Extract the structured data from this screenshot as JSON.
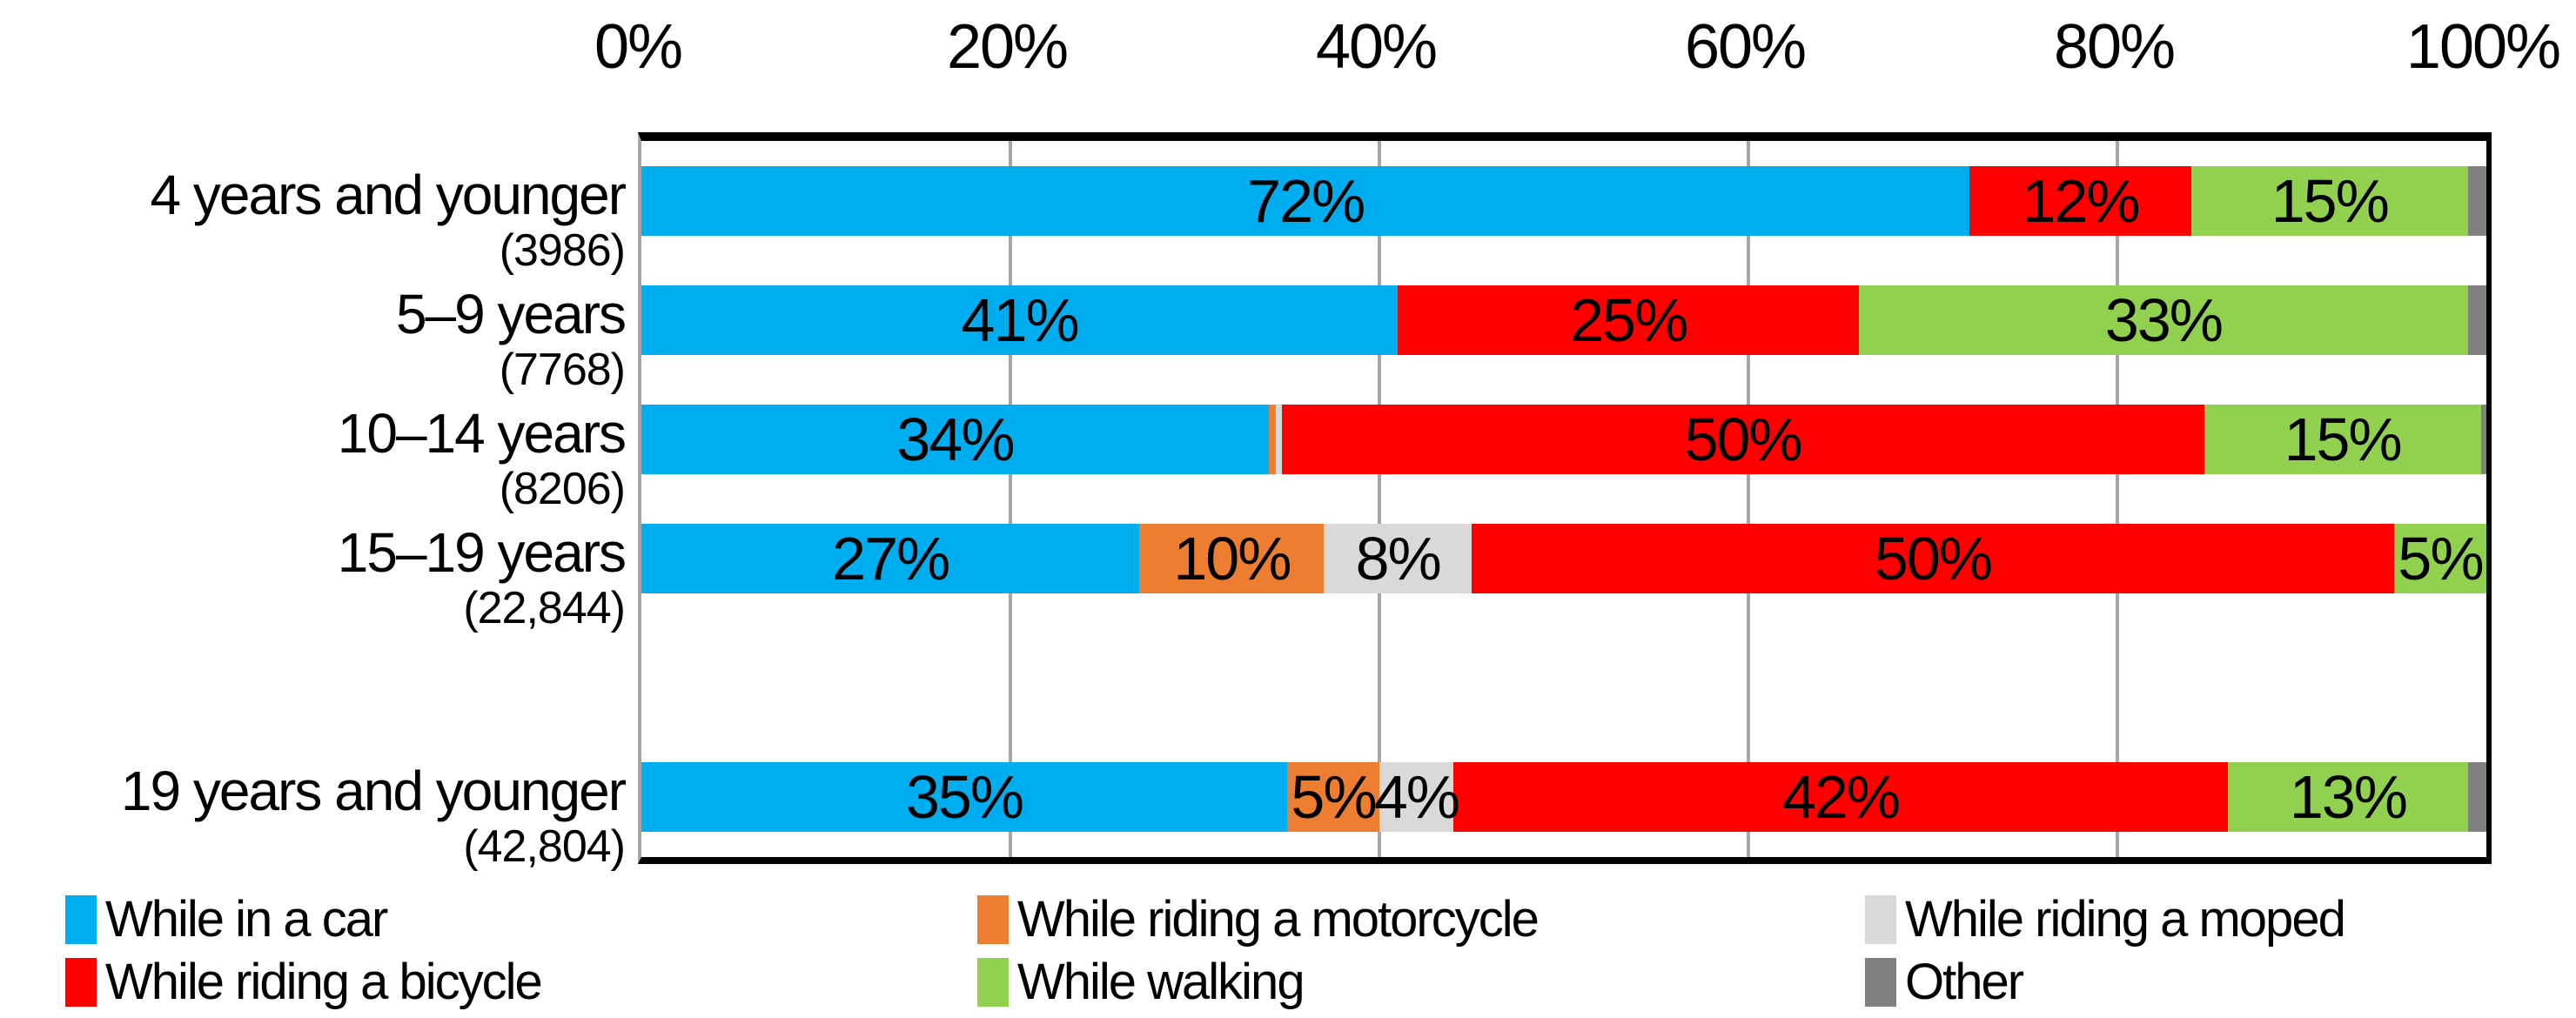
{
  "chart_data": {
    "type": "bar",
    "variant": "horizontal-stacked-100pct",
    "title": "",
    "x_axis": {
      "position": "top",
      "range": [
        0,
        100
      ],
      "tick_labels": [
        "0%",
        "20%",
        "40%",
        "60%",
        "80%",
        "100%"
      ],
      "gridlines": true
    },
    "colors": {
      "car": "#00aeef",
      "motorcycle": "#ed7d31",
      "moped": "#d9d9d9",
      "bicycle": "#ff0000",
      "walking": "#92d050",
      "other": "#808080",
      "gridline": "#a6a6a6",
      "axis": "#000000"
    },
    "rows": [
      {
        "category": "4 years and younger",
        "count": "(3986)",
        "segments": [
          {
            "key": "car",
            "value": 72,
            "label": "72%"
          },
          {
            "key": "bicycle",
            "value": 12,
            "label": "12%"
          },
          {
            "key": "walking",
            "value": 15,
            "label": "15%"
          },
          {
            "key": "other",
            "value": 1,
            "label": ""
          }
        ]
      },
      {
        "category": "5–9 years",
        "count": "(7768)",
        "segments": [
          {
            "key": "car",
            "value": 41,
            "label": "41%"
          },
          {
            "key": "bicycle",
            "value": 25,
            "label": "25%"
          },
          {
            "key": "walking",
            "value": 33,
            "label": "33%"
          },
          {
            "key": "other",
            "value": 1,
            "label": ""
          }
        ]
      },
      {
        "category": "10–14 years",
        "count": "(8206)",
        "segments": [
          {
            "key": "car",
            "value": 34,
            "label": "34%"
          },
          {
            "key": "motorcycle",
            "value": 0.4,
            "label": ""
          },
          {
            "key": "moped",
            "value": 0.3,
            "label": ""
          },
          {
            "key": "bicycle",
            "value": 50,
            "label": "50%"
          },
          {
            "key": "walking",
            "value": 15,
            "label": "15%"
          },
          {
            "key": "other",
            "value": 0.3,
            "label": ""
          }
        ]
      },
      {
        "category": "15–19 years",
        "count": "(22,844)",
        "segments": [
          {
            "key": "car",
            "value": 27,
            "label": "27%"
          },
          {
            "key": "motorcycle",
            "value": 10,
            "label": "10%"
          },
          {
            "key": "moped",
            "value": 8,
            "label": "8%"
          },
          {
            "key": "bicycle",
            "value": 50,
            "label": "50%"
          },
          {
            "key": "walking",
            "value": 5,
            "label": "5%"
          }
        ]
      },
      {
        "category": "",
        "count": "",
        "segments": []
      },
      {
        "category": "19 years and younger",
        "count": "(42,804)",
        "segments": [
          {
            "key": "car",
            "value": 35,
            "label": "35%"
          },
          {
            "key": "motorcycle",
            "value": 5,
            "label": "5%"
          },
          {
            "key": "moped",
            "value": 4,
            "label": "4%"
          },
          {
            "key": "bicycle",
            "value": 42,
            "label": "42%"
          },
          {
            "key": "walking",
            "value": 13,
            "label": "13%"
          },
          {
            "key": "other",
            "value": 1,
            "label": ""
          }
        ]
      }
    ],
    "legend": {
      "position": "bottom",
      "columns": [
        [
          {
            "key": "car",
            "label": "While in a car"
          },
          {
            "key": "bicycle",
            "label": "While riding a bicycle"
          }
        ],
        [
          {
            "key": "motorcycle",
            "label": "While riding a motorcycle"
          },
          {
            "key": "walking",
            "label": "While walking"
          }
        ],
        [
          {
            "key": "moped",
            "label": "While riding a moped"
          },
          {
            "key": "other",
            "label": "Other"
          }
        ]
      ]
    }
  }
}
